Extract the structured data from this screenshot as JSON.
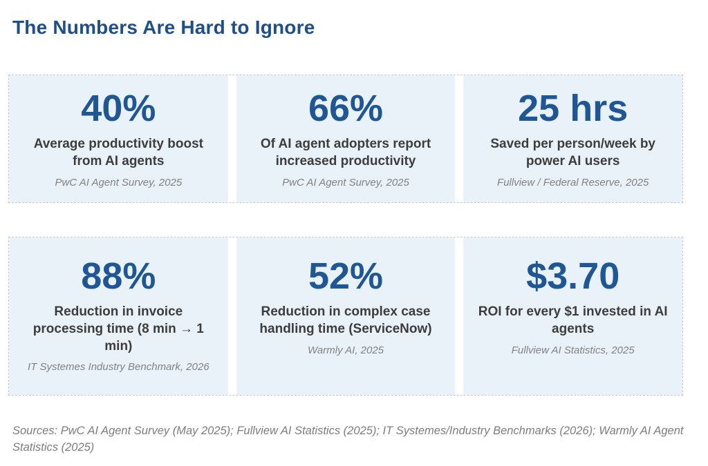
{
  "title": "The Numbers Are Hard to Ignore",
  "colors": {
    "title_blue": "#1d4f8c",
    "stat_blue": "#1f5796",
    "card_background": "#e9f1f9",
    "label_gray": "#3d3d3d",
    "source_gray": "#828282",
    "dashed_border_gray": "#c9c9c9"
  },
  "cards": [
    {
      "value": "40%",
      "label": "Average productivity boost from AI agents",
      "source": "PwC AI Agent Survey, 2025"
    },
    {
      "value": "66%",
      "label": "Of AI agent adopters report increased productivity",
      "source": "PwC AI Agent Survey, 2025"
    },
    {
      "value": "25 hrs",
      "label": "Saved per person/week by power AI users",
      "source": "Fullview / Federal Reserve, 2025"
    },
    {
      "value": "88%",
      "label": "Reduction in invoice processing time (8 min → 1 min)",
      "source": "IT Systemes Industry Benchmark, 2026"
    },
    {
      "value": "52%",
      "label": "Reduction in complex case handling time (ServiceNow)",
      "source": "Warmly AI, 2025"
    },
    {
      "value": "$3.70",
      "label": "ROI for every $1 invested in AI agents",
      "source": "Fullview AI Statistics, 2025"
    }
  ],
  "footer": "Sources: PwC AI Agent Survey (May 2025); Fullview AI Statistics (2025); IT Systemes/Industry Benchmarks (2026); Warmly AI Agent Statistics (2025)"
}
